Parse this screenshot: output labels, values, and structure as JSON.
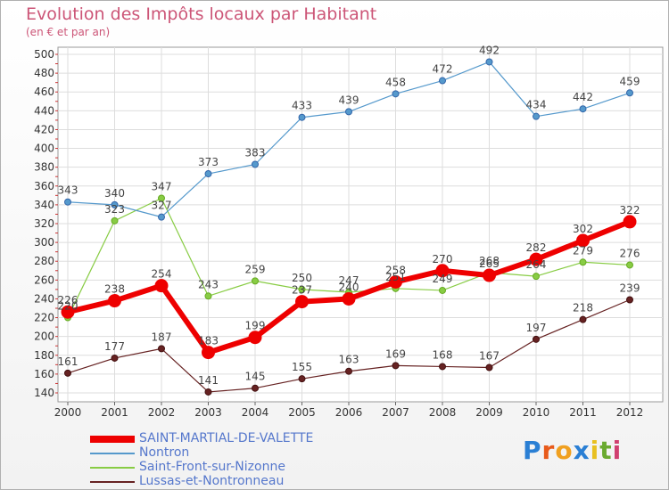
{
  "title": "Evolution des Impôts locaux par Habitant",
  "subtitle": "(en € et par an)",
  "logo": {
    "text": "Proxiti",
    "letters": [
      "P",
      "r",
      "o",
      "x",
      "i",
      "t",
      "i"
    ],
    "colors": [
      "#2a7fd4",
      "#e85a1a",
      "#f0a020",
      "#2a7fd4",
      "#e8c020",
      "#6aaa30",
      "#d04070"
    ]
  },
  "chart_data": {
    "type": "line",
    "title": "Evolution des Impôts locaux par Habitant",
    "subtitle": "(en € et par an)",
    "xlabel": "",
    "ylabel": "",
    "x": [
      "2000",
      "2001",
      "2002",
      "2003",
      "2004",
      "2005",
      "2006",
      "2007",
      "2008",
      "2009",
      "2010",
      "2011",
      "2012"
    ],
    "ylim": [
      140,
      500
    ],
    "yticks": [
      140,
      160,
      180,
      200,
      220,
      240,
      260,
      280,
      300,
      320,
      340,
      360,
      380,
      400,
      420,
      440,
      460,
      480,
      500
    ],
    "grid": true,
    "legend": "bottom-left",
    "series": [
      {
        "name": "SAINT-MARTIAL-DE-VALETTE",
        "color": "#ee0000",
        "values": [
          226,
          238,
          254,
          183,
          199,
          237,
          240,
          258,
          270,
          265,
          282,
          302,
          322
        ],
        "labels": [
          "226",
          "238",
          "254",
          "183",
          "199",
          "237",
          "240",
          "258",
          "270",
          "265",
          "282",
          "302",
          "322"
        ]
      },
      {
        "name": "Nontron",
        "color": "#5599cc",
        "values": [
          343,
          340,
          327,
          373,
          383,
          433,
          439,
          458,
          472,
          492,
          434,
          442,
          459
        ],
        "labels": [
          "343",
          "340",
          "327",
          "373",
          "383",
          "433",
          "439",
          "458",
          "472",
          "492",
          "434",
          "442",
          "459"
        ]
      },
      {
        "name": "Saint-Front-sur-Nizonne",
        "color": "#88cc44",
        "values": [
          220,
          323,
          347,
          243,
          259,
          250,
          247,
          251,
          249,
          268,
          264,
          279,
          276
        ],
        "labels": [
          "220",
          "323",
          "347",
          "243",
          "259",
          "250",
          "247",
          "251",
          "249",
          "268",
          "264",
          "279",
          "276"
        ]
      },
      {
        "name": "Lussas-et-Nontronneau",
        "color": "#662222",
        "values": [
          161,
          177,
          187,
          141,
          145,
          155,
          163,
          169,
          168,
          167,
          197,
          218,
          239
        ],
        "labels": [
          "161",
          "177",
          "187",
          "141",
          "145",
          "155",
          "163",
          "169",
          "168",
          "167",
          "197",
          "218",
          "239"
        ]
      }
    ]
  }
}
